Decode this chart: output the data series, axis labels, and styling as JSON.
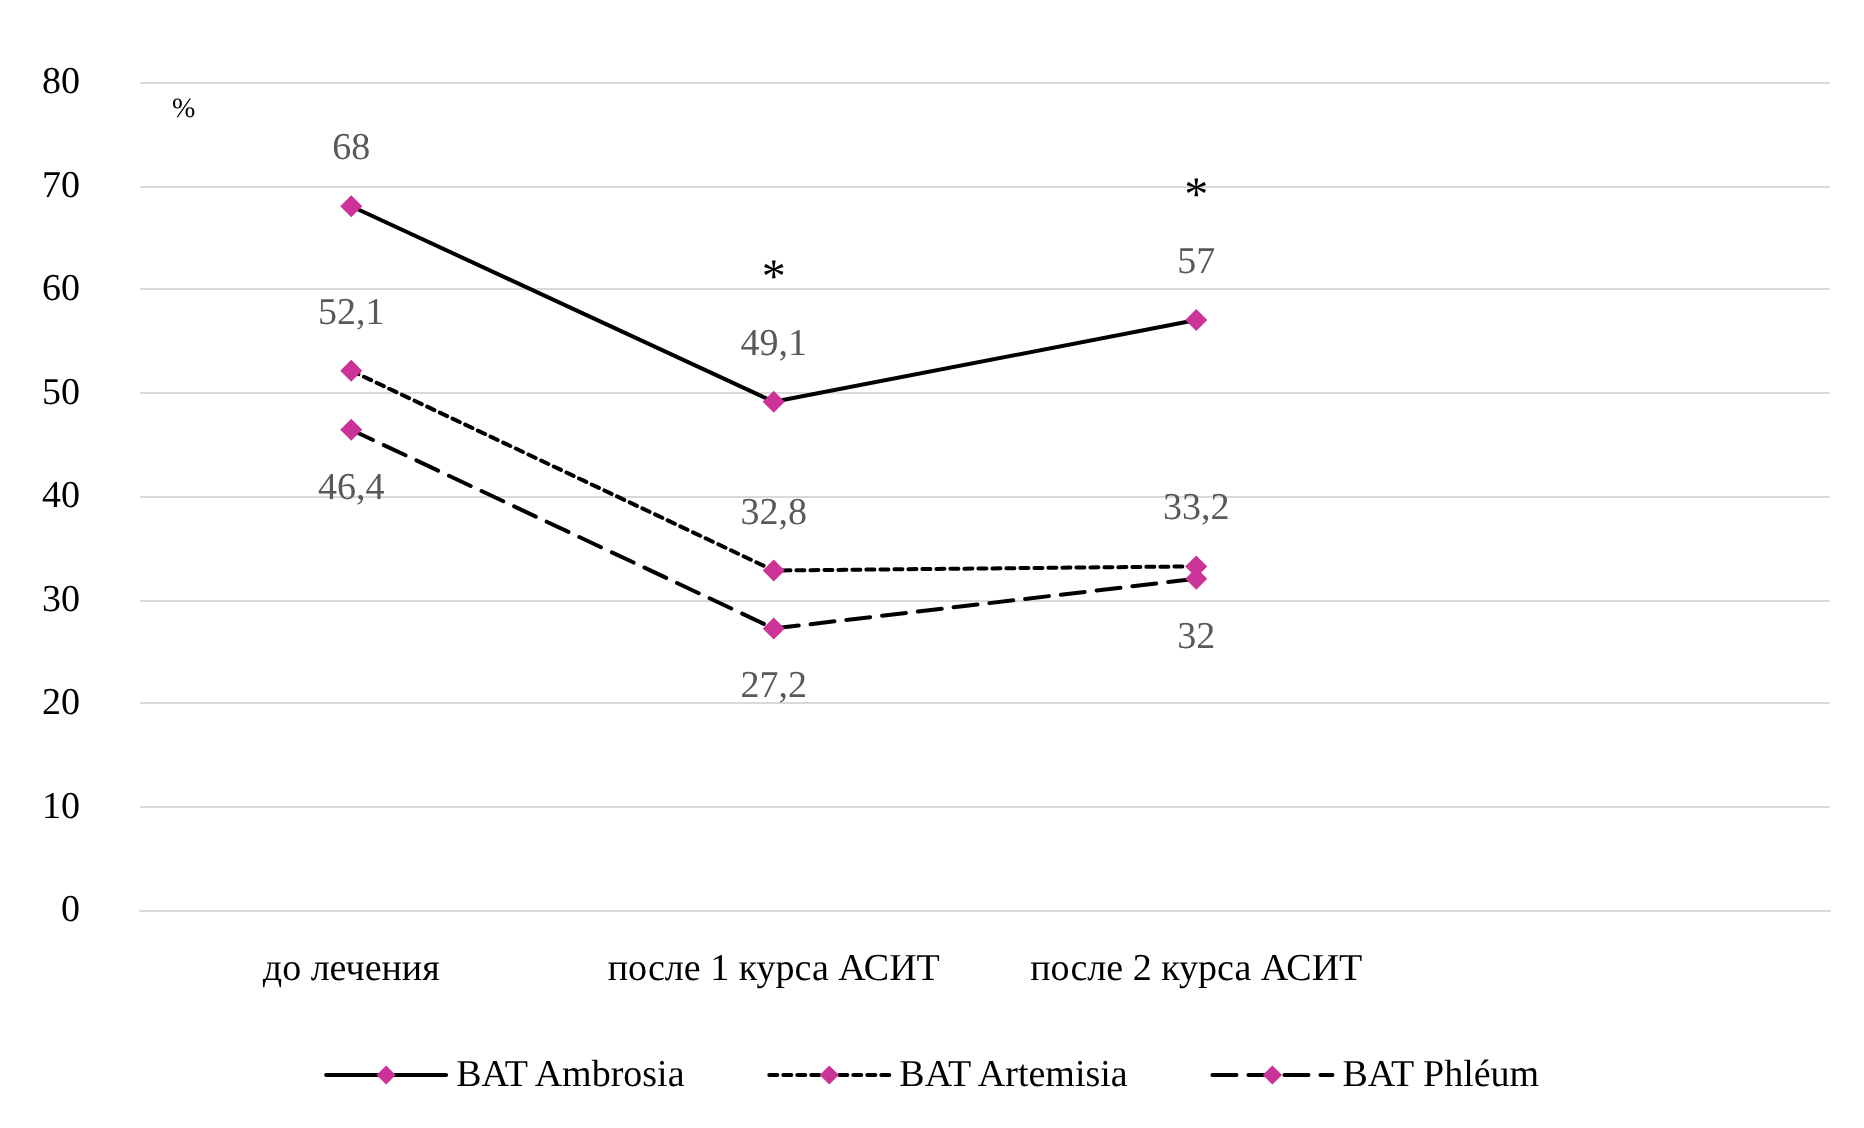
{
  "chart_data": {
    "type": "line",
    "ylabel": "%",
    "categories": [
      "до лечения",
      "после 1 курса АСИТ",
      "после 2 курса АСИТ",
      null
    ],
    "series": [
      {
        "name": "BAT Ambrosia",
        "color": "#000000",
        "colors": [
          "#cc3399",
          "#cc3399",
          "#cc3399",
          null
        ],
        "line_style": "solid",
        "values": [
          68,
          49.1,
          57,
          null
        ],
        "value_labels": [
          "68",
          "49,1",
          "57",
          null
        ]
      },
      {
        "name": "BAT Artemisia",
        "color": "#000000",
        "colors": [
          "#cc3399",
          "#cc3399",
          "#cc3399",
          null
        ],
        "line_style": "dotted",
        "values": [
          52.1,
          32.8,
          33.2,
          null
        ],
        "value_labels": [
          "52,1",
          "32,8",
          "33,2",
          null
        ]
      },
      {
        "name": "BAT Phléum",
        "color": "#000000",
        "colors": [
          "#cc3399",
          "#cc3399",
          "#cc3399",
          null
        ],
        "line_style": "dashed",
        "values": [
          46.4,
          27.2,
          32,
          null
        ],
        "value_labels": [
          "46,4",
          "27,2",
          "32",
          null
        ]
      }
    ],
    "annotations": [
      "*",
      "*"
    ],
    "ylim": [
      0,
      80
    ],
    "yticks": [
      0,
      10,
      20,
      30,
      40,
      50,
      60,
      70,
      80
    ],
    "grid": "y",
    "legend": "bottom",
    "marker": "diamond"
  }
}
